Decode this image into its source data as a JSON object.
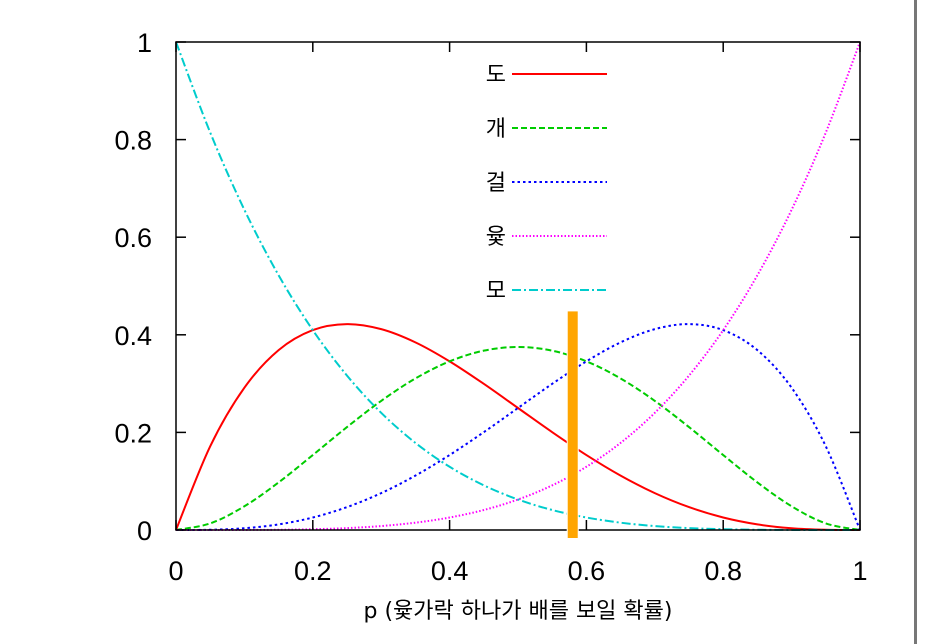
{
  "chart_data": {
    "type": "line",
    "title": "",
    "xlabel": "p (윷가락 하나가 배를 보일 확률)",
    "ylabel": "",
    "xlim": [
      0,
      1
    ],
    "ylim": [
      0,
      1
    ],
    "x_ticks": [
      "0",
      "0.2",
      "0.4",
      "0.6",
      "0.8",
      "1"
    ],
    "y_ticks": [
      "0",
      "0.2",
      "0.4",
      "0.6",
      "0.8",
      "1"
    ],
    "grid": false,
    "legend_position": "top-center",
    "x": [
      0,
      0.05,
      0.1,
      0.15,
      0.2,
      0.25,
      0.3,
      0.35,
      0.4,
      0.45,
      0.5,
      0.55,
      0.6,
      0.65,
      0.7,
      0.75,
      0.8,
      0.85,
      0.9,
      0.95,
      1
    ],
    "series": [
      {
        "name": "도",
        "color": "#ff0000",
        "dash": "solid",
        "values": [
          0,
          0.1715,
          0.2916,
          0.3685,
          0.4096,
          0.4219,
          0.4116,
          0.3845,
          0.3456,
          0.2995,
          0.25,
          0.2005,
          0.1536,
          0.1115,
          0.0756,
          0.0469,
          0.0256,
          0.0115,
          0.0036,
          0.0005,
          0
        ]
      },
      {
        "name": "개",
        "color": "#00cc00",
        "dash": "dashed",
        "values": [
          0,
          0.0135,
          0.0486,
          0.0975,
          0.1536,
          0.2109,
          0.2646,
          0.3105,
          0.3456,
          0.3675,
          0.375,
          0.3675,
          0.3456,
          0.3105,
          0.2646,
          0.2109,
          0.1536,
          0.0975,
          0.0486,
          0.0135,
          0
        ]
      },
      {
        "name": "걸",
        "color": "#0000ff",
        "dash": "dotted",
        "values": [
          0,
          0.0005,
          0.0036,
          0.0115,
          0.0256,
          0.0469,
          0.0756,
          0.1115,
          0.1536,
          0.2005,
          0.25,
          0.2995,
          0.3456,
          0.3845,
          0.4116,
          0.4219,
          0.4096,
          0.3685,
          0.2916,
          0.1715,
          0
        ]
      },
      {
        "name": "윷",
        "color": "#ff00ff",
        "dash": "fine-dotted",
        "values": [
          0,
          0,
          0.0001,
          0.0005,
          0.0016,
          0.0039,
          0.0081,
          0.015,
          0.0256,
          0.041,
          0.0625,
          0.0915,
          0.1296,
          0.1785,
          0.2401,
          0.3164,
          0.4096,
          0.522,
          0.6561,
          0.8145,
          1
        ]
      },
      {
        "name": "모",
        "color": "#00cccc",
        "dash": "dash-dot",
        "values": [
          1,
          0.8145,
          0.6561,
          0.522,
          0.4096,
          0.3164,
          0.2401,
          0.1785,
          0.1296,
          0.0915,
          0.0625,
          0.041,
          0.0256,
          0.015,
          0.0081,
          0.0039,
          0.0016,
          0.0005,
          0.0001,
          0,
          0
        ]
      }
    ],
    "marker": {
      "x": 0.58,
      "y_range": [
        0,
        0.45
      ],
      "color": "#ffa500"
    }
  }
}
